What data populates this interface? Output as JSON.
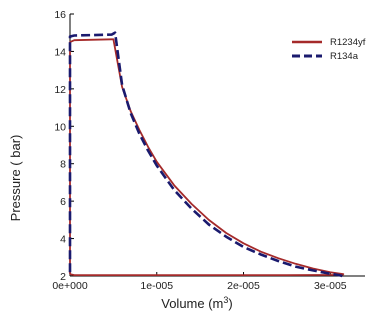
{
  "chart_data": {
    "type": "line",
    "title": "",
    "xlabel": "Volume (m",
    "xlabel_sup": "3",
    "xlabel_close": ")",
    "ylabel": "Pressure ( bar)",
    "xlim": [
      0,
      3.4e-05
    ],
    "ylim": [
      2,
      16
    ],
    "x_ticks": [
      0,
      1e-05,
      2e-05,
      3e-05
    ],
    "x_tick_labels": [
      "0e+000",
      "1e-005",
      "2e-005",
      "3e-005"
    ],
    "y_ticks": [
      2,
      4,
      6,
      8,
      10,
      12,
      14,
      16
    ],
    "y_tick_labels": [
      "2",
      "4",
      "6",
      "8",
      "10",
      "12",
      "14",
      "16"
    ],
    "grid": false,
    "legend_position": "top-right",
    "colors": {
      "R1234yf": "#a52a2a",
      "R134a": "#1a1a6e"
    },
    "series": [
      {
        "name": "R1234yf",
        "style": "solid",
        "x": [
          0.0,
          0.0,
          5e-07,
          4.8e-06,
          5e-06,
          6e-06,
          7e-06,
          8e-06,
          9e-06,
          1e-05,
          1.2e-05,
          1.4e-05,
          1.6e-05,
          1.8e-05,
          2e-05,
          2.2e-05,
          2.4e-05,
          2.6e-05,
          2.8e-05,
          3e-05,
          3.15e-05,
          3.14e-05,
          2.5e-05,
          1.5e-05,
          5e-06,
          5e-07,
          0.0
        ],
        "y": [
          2.1,
          14.5,
          14.6,
          14.65,
          14.65,
          12.1,
          10.8,
          9.8,
          8.9,
          8.1,
          6.85,
          5.85,
          5.0,
          4.3,
          3.75,
          3.3,
          2.95,
          2.65,
          2.4,
          2.2,
          2.1,
          2.06,
          2.05,
          2.05,
          2.05,
          2.05,
          2.1
        ]
      },
      {
        "name": "R134a",
        "style": "dashed",
        "x": [
          0.0,
          0.0,
          5e-07,
          4.8e-06,
          5.2e-06,
          6e-06,
          7e-06,
          8e-06,
          9e-06,
          1e-05,
          1.2e-05,
          1.4e-05,
          1.6e-05,
          1.8e-05,
          2e-05,
          2.2e-05,
          2.4e-05,
          2.6e-05,
          2.8e-05,
          3e-05,
          3.1e-05,
          3.14e-05
        ],
        "y": [
          2.2,
          14.8,
          14.85,
          14.9,
          15.0,
          12.2,
          10.7,
          9.6,
          8.7,
          7.9,
          6.6,
          5.6,
          4.75,
          4.1,
          3.55,
          3.15,
          2.8,
          2.5,
          2.3,
          2.12,
          2.05,
          2.0
        ]
      }
    ]
  }
}
